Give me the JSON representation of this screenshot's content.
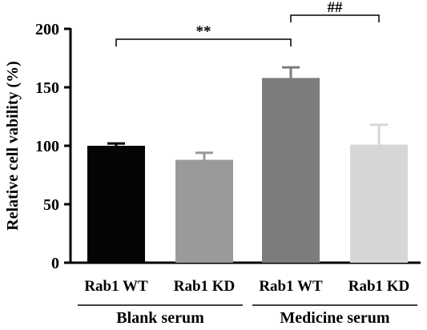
{
  "chart_data": {
    "type": "bar",
    "ylabel": "Relative cell vability (%)",
    "ylim": [
      0,
      200
    ],
    "yticks": [
      0,
      50,
      100,
      150,
      200
    ],
    "categories": [
      "Rab1 WT",
      "Rab1 KD",
      "Rab1 WT",
      "Rab1 KD"
    ],
    "values": [
      100,
      88,
      158,
      101
    ],
    "errors": [
      2,
      6,
      9,
      17
    ],
    "colors": [
      "#050505",
      "#9a9a9a",
      "#7d7d7d",
      "#d6d6d6"
    ],
    "groups": [
      {
        "label": "Blank serum",
        "categories": [
          0,
          1
        ]
      },
      {
        "label": "Medicine serum",
        "categories": [
          2,
          3
        ]
      }
    ],
    "significance": [
      {
        "from": 0,
        "to": 2,
        "label": "**"
      },
      {
        "from": 2,
        "to": 3,
        "label": "##"
      }
    ],
    "grid": false,
    "legend": "none"
  }
}
